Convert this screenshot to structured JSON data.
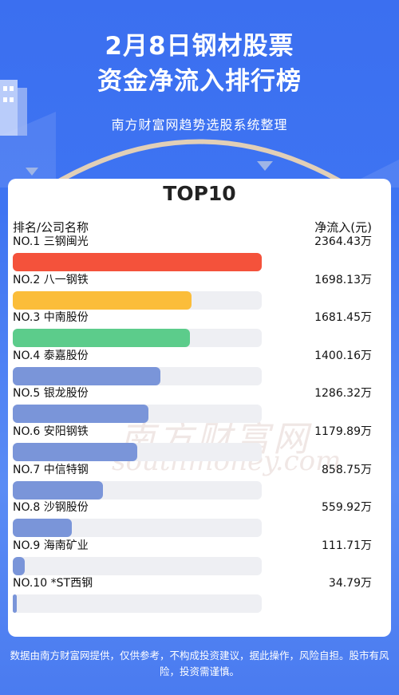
{
  "header": {
    "title_line1": "2月8日钢材股票",
    "title_line2": "资金净流入排行榜",
    "subtitle": "南方财富网趋势选股系统整理"
  },
  "card": {
    "title": "TOP10",
    "col_left": "排名/公司名称",
    "col_right": "净流入(元)"
  },
  "watermark": {
    "line1": "南方财富网",
    "line2": "southmoney.com"
  },
  "colors": {
    "background": "#3e74f2",
    "bar_rank1": "#f4523b",
    "bar_rank2": "#fbbd3a",
    "bar_rank3": "#5ccc8b",
    "bar_default": "#7a95d9",
    "track": "#eeeff3"
  },
  "chart_data": {
    "type": "bar",
    "title": "TOP10",
    "xlabel": "排名/公司名称",
    "ylabel": "净流入(元)",
    "unit": "万",
    "categories": [
      "NO.1 三钢闽光",
      "NO.2 八一钢铁",
      "NO.3 中南股份",
      "NO.4 泰嘉股份",
      "NO.5 银龙股份",
      "NO.6 安阳钢铁",
      "NO.7 中信特钢",
      "NO.8 沙钢股份",
      "NO.9 海南矿业",
      "NO.10 *ST西钢"
    ],
    "values": [
      2364.43,
      1698.13,
      1681.45,
      1400.16,
      1286.32,
      1179.89,
      858.75,
      559.92,
      111.71,
      34.79
    ],
    "value_labels": [
      "2364.43万",
      "1698.13万",
      "1681.45万",
      "1400.16万",
      "1286.32万",
      "1179.89万",
      "858.75万",
      "559.92万",
      "111.71万",
      "34.79万"
    ]
  },
  "footer": {
    "disclaimer": "数据由南方财富网提供，仅供参考，不构成投资建议，据此操作，风险自担。股市有风险，投资需谨慎。"
  }
}
